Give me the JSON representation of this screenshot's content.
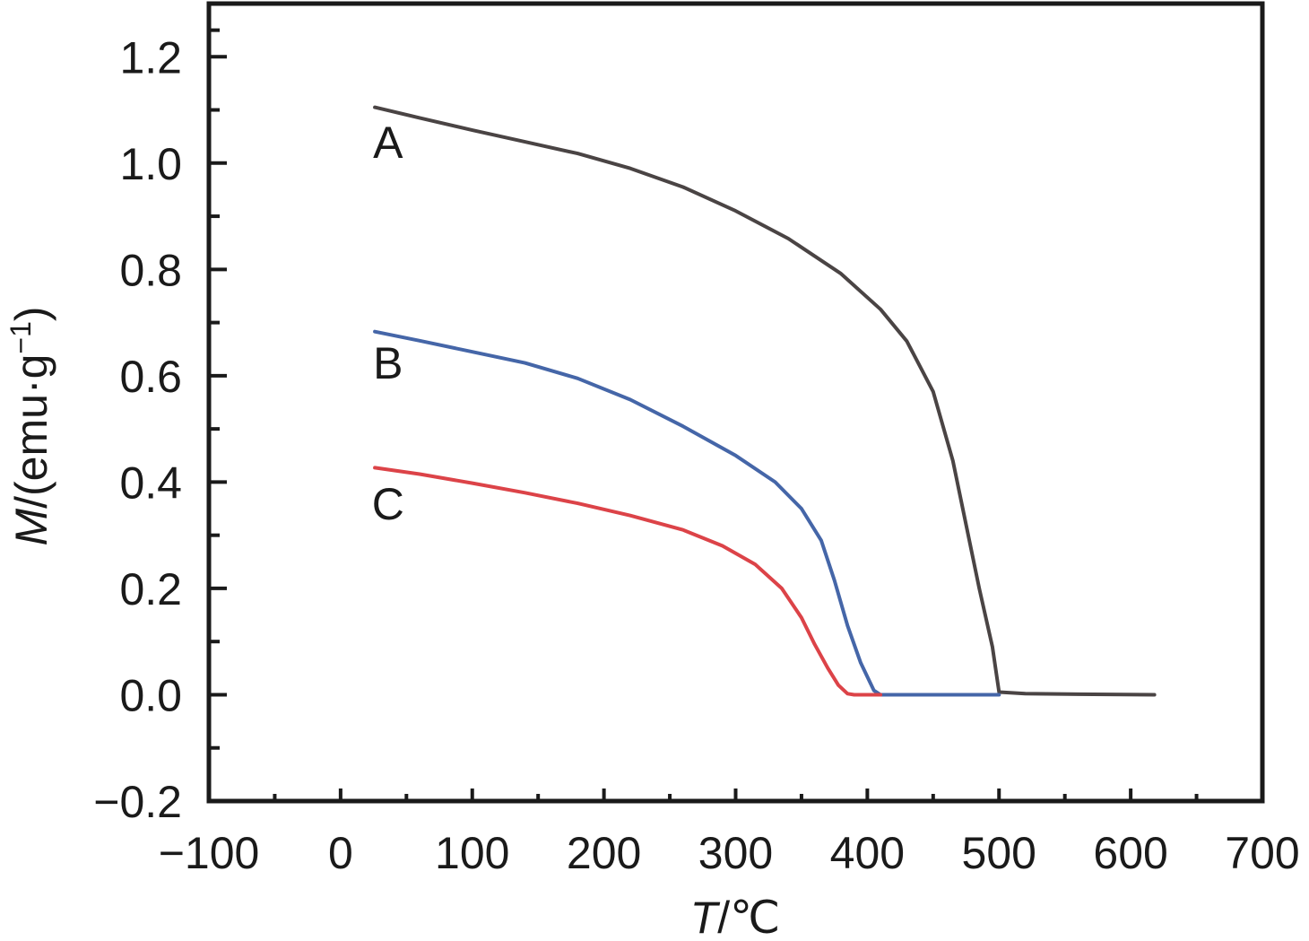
{
  "chart_data": {
    "type": "line",
    "xlabel_var": "T",
    "xlabel_unit": "/℃",
    "ylabel_var": "M",
    "ylabel_unit": "/(emu·g",
    "ylabel_sup": "−1",
    "ylabel_close": ")",
    "xlim": [
      -100,
      700
    ],
    "ylim": [
      -0.2,
      1.3
    ],
    "x_ticks": [
      -100,
      0,
      100,
      200,
      300,
      400,
      500,
      600,
      700
    ],
    "x_tick_labels": [
      "−100",
      "0",
      "100",
      "200",
      "300",
      "400",
      "500",
      "600",
      "700"
    ],
    "y_ticks": [
      -0.2,
      0.0,
      0.2,
      0.4,
      0.6,
      0.8,
      1.0,
      1.2
    ],
    "y_tick_labels": [
      "−0.2",
      "0.0",
      "0.2",
      "0.4",
      "0.6",
      "0.8",
      "1.0",
      "1.2"
    ],
    "grid": false,
    "legend": "none",
    "series": [
      {
        "name": "A",
        "color": "#4a4444",
        "label_at": [
          36,
          1.01
        ],
        "points": [
          [
            26,
            1.105
          ],
          [
            60,
            1.085
          ],
          [
            100,
            1.062
          ],
          [
            140,
            1.04
          ],
          [
            180,
            1.018
          ],
          [
            220,
            0.99
          ],
          [
            260,
            0.955
          ],
          [
            300,
            0.91
          ],
          [
            340,
            0.858
          ],
          [
            380,
            0.792
          ],
          [
            410,
            0.725
          ],
          [
            430,
            0.665
          ],
          [
            450,
            0.57
          ],
          [
            465,
            0.44
          ],
          [
            475,
            0.32
          ],
          [
            485,
            0.2
          ],
          [
            495,
            0.09
          ],
          [
            500,
            0.005
          ],
          [
            520,
            0.002
          ],
          [
            560,
            0.001
          ],
          [
            618,
            0.0
          ]
        ]
      },
      {
        "name": "B",
        "color": "#4566a8",
        "label_at": [
          36,
          0.595
        ],
        "points": [
          [
            26,
            0.683
          ],
          [
            60,
            0.666
          ],
          [
            100,
            0.645
          ],
          [
            140,
            0.624
          ],
          [
            180,
            0.595
          ],
          [
            220,
            0.555
          ],
          [
            260,
            0.505
          ],
          [
            300,
            0.45
          ],
          [
            330,
            0.4
          ],
          [
            350,
            0.35
          ],
          [
            365,
            0.29
          ],
          [
            375,
            0.215
          ],
          [
            385,
            0.13
          ],
          [
            395,
            0.06
          ],
          [
            405,
            0.008
          ],
          [
            410,
            0.0
          ],
          [
            500,
            0.0
          ]
        ]
      },
      {
        "name": "C",
        "color": "#dc4348",
        "label_at": [
          36,
          0.33
        ],
        "points": [
          [
            26,
            0.427
          ],
          [
            60,
            0.415
          ],
          [
            100,
            0.398
          ],
          [
            140,
            0.38
          ],
          [
            180,
            0.36
          ],
          [
            220,
            0.337
          ],
          [
            260,
            0.31
          ],
          [
            290,
            0.28
          ],
          [
            315,
            0.245
          ],
          [
            335,
            0.2
          ],
          [
            350,
            0.145
          ],
          [
            360,
            0.095
          ],
          [
            370,
            0.05
          ],
          [
            378,
            0.018
          ],
          [
            385,
            0.002
          ],
          [
            390,
            0.0
          ],
          [
            410,
            0.0
          ]
        ]
      }
    ]
  }
}
